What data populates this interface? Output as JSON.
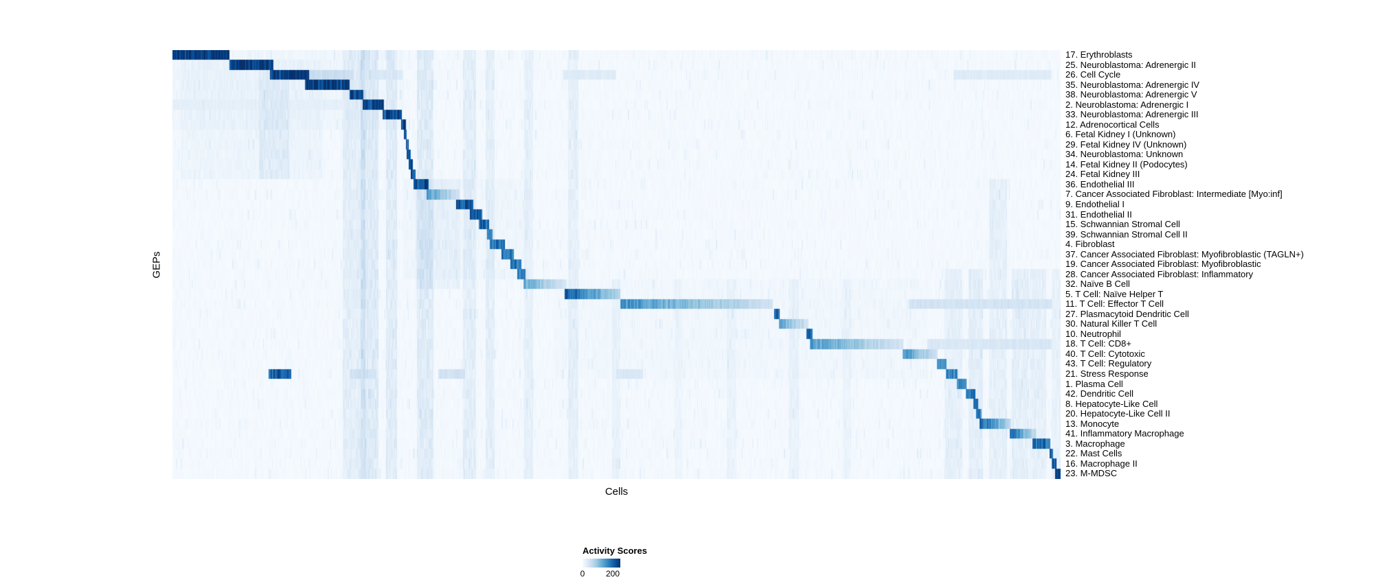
{
  "chart_data": {
    "type": "heatmap",
    "title": "",
    "xlabel": "Cells",
    "ylabel": "GEPs",
    "legend_title": "Activity Scores",
    "colormap": "Blues",
    "colormap_stops": [
      [
        0.0,
        "#f7fbff"
      ],
      [
        0.125,
        "#deebf7"
      ],
      [
        0.25,
        "#c6dbef"
      ],
      [
        0.375,
        "#9ecae1"
      ],
      [
        0.5,
        "#6baed6"
      ],
      [
        0.625,
        "#4292c6"
      ],
      [
        0.75,
        "#2171b5"
      ],
      [
        0.875,
        "#08519c"
      ],
      [
        1.0,
        "#08306b"
      ]
    ],
    "value_range": [
      0,
      250
    ],
    "legend_ticks": [
      {
        "label": "0",
        "pos": 0
      },
      {
        "label": "200",
        "pos": 0.8
      }
    ],
    "n_cells": 900,
    "rows": [
      {
        "label": "17. Erythroblasts",
        "segs": [
          [
            0.0,
            0.065,
            250,
            0
          ]
        ]
      },
      {
        "label": "25. Neuroblastoma: Adrenergic II",
        "segs": [
          [
            0.065,
            0.115,
            245,
            0
          ]
        ]
      },
      {
        "label": "26. Cell Cycle",
        "segs": [
          [
            0.11,
            0.154,
            240,
            0
          ],
          [
            0.154,
            0.205,
            55,
            0
          ],
          [
            0.21,
            0.26,
            35,
            0
          ],
          [
            0.44,
            0.5,
            30,
            0
          ],
          [
            0.88,
            0.99,
            30,
            0
          ]
        ]
      },
      {
        "label": "35. Neuroblastoma: Adrenergic IV",
        "segs": [
          [
            0.15,
            0.2,
            240,
            0
          ]
        ]
      },
      {
        "label": "38. Neuroblastoma: Adrenergic V",
        "segs": [
          [
            0.2,
            0.216,
            228,
            0
          ]
        ]
      },
      {
        "label": "2. Neuroblastoma: Adrenergic I",
        "segs": [
          [
            0.214,
            0.239,
            232,
            0
          ],
          [
            0.0,
            0.214,
            22,
            0
          ]
        ]
      },
      {
        "label": "33. Neuroblastoma: Adrenergic III",
        "segs": [
          [
            0.237,
            0.259,
            222,
            0
          ]
        ]
      },
      {
        "label": "12. Adrenocortical Cells",
        "segs": [
          [
            0.258,
            0.263,
            228,
            0
          ]
        ]
      },
      {
        "label": "6. Fetal Kidney I (Unknown)",
        "segs": [
          [
            0.261,
            0.265,
            215,
            0
          ]
        ]
      },
      {
        "label": "29. Fetal Kidney IV (Unknown)",
        "segs": [
          [
            0.263,
            0.267,
            212,
            0
          ]
        ]
      },
      {
        "label": "34. Neuroblastoma: Unknown",
        "segs": [
          [
            0.265,
            0.269,
            205,
            0
          ]
        ]
      },
      {
        "label": "14. Fetal Kidney II (Podocytes)",
        "segs": [
          [
            0.267,
            0.271,
            205,
            0
          ]
        ]
      },
      {
        "label": "24. Fetal Kidney III",
        "segs": [
          [
            0.269,
            0.274,
            215,
            0
          ]
        ]
      },
      {
        "label": "36. Endothelial III",
        "segs": [
          [
            0.272,
            0.289,
            215,
            0
          ]
        ]
      },
      {
        "label": "7. Cancer Associated Fibroblast: Intermediate [Myo:inf]",
        "segs": [
          [
            0.287,
            0.323,
            140,
            1
          ]
        ]
      },
      {
        "label": "9. Endothelial I",
        "segs": [
          [
            0.32,
            0.339,
            212,
            0
          ]
        ]
      },
      {
        "label": "31. Endothelial II",
        "segs": [
          [
            0.336,
            0.349,
            205,
            0
          ]
        ]
      },
      {
        "label": "15. Schwannian Stromal Cell",
        "segs": [
          [
            0.346,
            0.357,
            200,
            0
          ]
        ]
      },
      {
        "label": "39. Schwannian Stromal Cell II",
        "segs": [
          [
            0.354,
            0.361,
            180,
            0
          ]
        ]
      },
      {
        "label": "4. Fibroblast",
        "segs": [
          [
            0.358,
            0.374,
            190,
            0
          ]
        ]
      },
      {
        "label": "37. Cancer Associated Fibroblast: Myofibroblastic (TAGLN+)",
        "segs": [
          [
            0.371,
            0.384,
            190,
            0
          ]
        ]
      },
      {
        "label": "19. Cancer Associated Fibroblast: Myofibroblastic",
        "segs": [
          [
            0.381,
            0.393,
            178,
            0
          ]
        ]
      },
      {
        "label": "28. Cancer Associated Fibroblast: Inflammatory",
        "segs": [
          [
            0.389,
            0.398,
            165,
            0
          ]
        ]
      },
      {
        "label": "32. Naïve B Cell",
        "segs": [
          [
            0.396,
            0.445,
            128,
            1
          ]
        ]
      },
      {
        "label": "5. T Cell: Naïve Helper T",
        "segs": [
          [
            0.442,
            0.505,
            215,
            1
          ]
        ]
      },
      {
        "label": "11. T Cell: Effector T Cell",
        "segs": [
          [
            0.504,
            0.677,
            155,
            1
          ],
          [
            0.83,
            0.99,
            45,
            0
          ]
        ]
      },
      {
        "label": "27. Plasmacytoid Dendritic Cell",
        "segs": [
          [
            0.678,
            0.684,
            200,
            0
          ]
        ]
      },
      {
        "label": "30. Natural Killer T Cell",
        "segs": [
          [
            0.683,
            0.717,
            140,
            1
          ]
        ]
      },
      {
        "label": "10. Neutrophil",
        "segs": [
          [
            0.715,
            0.721,
            200,
            0
          ]
        ]
      },
      {
        "label": "18. T Cell: CD8+",
        "segs": [
          [
            0.718,
            0.823,
            140,
            1
          ],
          [
            0.85,
            0.99,
            38,
            0
          ]
        ]
      },
      {
        "label": "40. T Cell: Cytotoxic",
        "segs": [
          [
            0.822,
            0.862,
            152,
            1
          ]
        ]
      },
      {
        "label": "43. T Cell: Regulatory",
        "segs": [
          [
            0.861,
            0.872,
            150,
            0
          ]
        ]
      },
      {
        "label": "21. Stress Response",
        "segs": [
          [
            0.871,
            0.884,
            162,
            0
          ],
          [
            0.109,
            0.134,
            205,
            0
          ],
          [
            0.2,
            0.23,
            50,
            0
          ],
          [
            0.3,
            0.33,
            50,
            0
          ],
          [
            0.5,
            0.53,
            38,
            0
          ]
        ]
      },
      {
        "label": "1. Plasma Cell",
        "segs": [
          [
            0.883,
            0.894,
            175,
            0
          ]
        ]
      },
      {
        "label": "42. Dendritic Cell",
        "segs": [
          [
            0.893,
            0.904,
            175,
            0
          ]
        ]
      },
      {
        "label": "8. Hepatocyte-Like Cell",
        "segs": [
          [
            0.902,
            0.908,
            188,
            0
          ]
        ]
      },
      {
        "label": "20. Hepatocyte-Like Cell II",
        "segs": [
          [
            0.906,
            0.911,
            175,
            0
          ]
        ]
      },
      {
        "label": "13. Monocyte",
        "segs": [
          [
            0.909,
            0.945,
            205,
            1
          ]
        ]
      },
      {
        "label": "41. Inflammatory Macrophage",
        "segs": [
          [
            0.943,
            0.972,
            190,
            1
          ]
        ]
      },
      {
        "label": "3. Macrophage",
        "segs": [
          [
            0.969,
            0.989,
            190,
            0
          ]
        ]
      },
      {
        "label": "22. Mast Cells",
        "segs": [
          [
            0.988,
            0.992,
            212,
            0
          ]
        ]
      },
      {
        "label": "16. Macrophage II",
        "segs": [
          [
            0.99,
            0.996,
            200,
            0
          ]
        ]
      },
      {
        "label": "23. M-MDSC",
        "segs": [
          [
            0.994,
            1.0,
            228,
            0
          ]
        ]
      }
    ],
    "streaks": [
      [
        0.13,
        0.26,
        8,
        0,
        8
      ],
      [
        0.09,
        0.16,
        12,
        1,
        13
      ],
      [
        0.115,
        0.035,
        25,
        2,
        13
      ],
      [
        0.205,
        0.025,
        30,
        0,
        43
      ],
      [
        0.222,
        0.02,
        40,
        0,
        43
      ],
      [
        0.247,
        0.012,
        35,
        0,
        43
      ],
      [
        0.285,
        0.018,
        38,
        0,
        43
      ],
      [
        0.3,
        0.05,
        18,
        13,
        24
      ],
      [
        0.33,
        0.14,
        8,
        13,
        23
      ],
      [
        0.335,
        0.014,
        30,
        0,
        43
      ],
      [
        0.358,
        0.01,
        28,
        0,
        43
      ],
      [
        0.402,
        0.01,
        25,
        0,
        43
      ],
      [
        0.452,
        0.012,
        25,
        0,
        43
      ],
      [
        0.5,
        0.01,
        18,
        23,
        43
      ],
      [
        0.57,
        0.01,
        12,
        23,
        43
      ],
      [
        0.63,
        0.012,
        15,
        23,
        43
      ],
      [
        0.64,
        0.42,
        5,
        23,
        33
      ],
      [
        0.7,
        0.012,
        18,
        23,
        43
      ],
      [
        0.76,
        0.01,
        14,
        23,
        43
      ],
      [
        0.88,
        0.02,
        25,
        22,
        43
      ],
      [
        0.905,
        0.016,
        30,
        22,
        43
      ],
      [
        0.93,
        0.02,
        25,
        13,
        43
      ],
      [
        0.955,
        0.02,
        28,
        22,
        43
      ],
      [
        0.975,
        0.018,
        25,
        22,
        43
      ],
      [
        0.995,
        0.01,
        20,
        22,
        43
      ]
    ]
  }
}
